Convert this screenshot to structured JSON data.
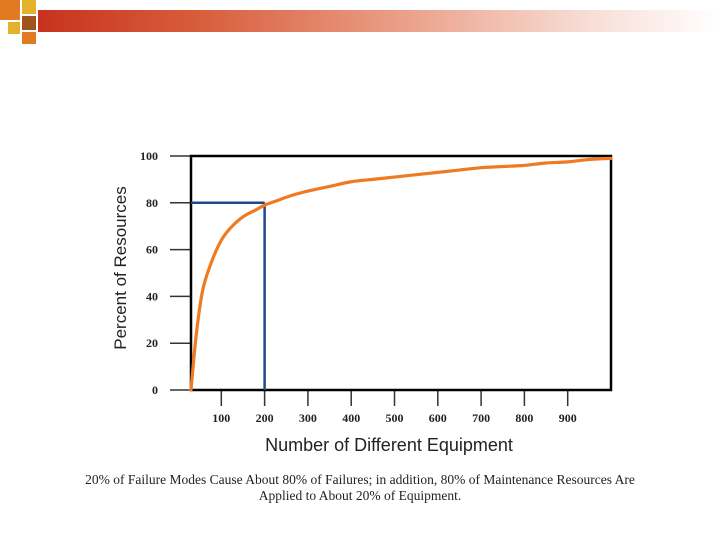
{
  "colors": {
    "header_bar": "#c8321e",
    "deco_orange": "#e07b23",
    "deco_yellow": "#e3b22a",
    "deco_brown": "#a0521f",
    "curve": "#f07a22",
    "reference_line": "#1e4a8a",
    "frame": "#000000"
  },
  "chart_data": {
    "type": "line",
    "xlabel": "Number of Different Equipment",
    "ylabel": "Percent of Resources",
    "x_ticks": [
      100,
      200,
      300,
      400,
      500,
      600,
      700,
      800,
      900
    ],
    "y_ticks": [
      0,
      20,
      40,
      60,
      80,
      100
    ],
    "xlim": [
      30,
      1000
    ],
    "ylim": [
      0,
      100
    ],
    "grid": false,
    "series": [
      {
        "x": [
          30,
          40,
          50,
          60,
          80,
          100,
          120,
          150,
          180,
          200,
          230,
          260,
          300,
          350,
          400,
          450,
          500,
          550,
          600,
          650,
          700,
          750,
          800,
          850,
          900,
          950,
          1000
        ],
        "y": [
          0,
          20,
          35,
          45,
          56,
          64,
          69,
          74,
          77,
          79,
          81,
          83,
          85,
          87,
          89,
          90,
          91,
          92,
          93,
          94,
          95,
          95.5,
          96,
          97,
          97.5,
          98.5,
          99
        ]
      }
    ],
    "reference": {
      "x": 200,
      "y": 80
    }
  },
  "caption": {
    "line1": "20% of Failure Modes Cause About 80% of Failures; in addition, 80% of Maintenance Resources Are",
    "line2": "Applied to About 20% of Equipment."
  }
}
